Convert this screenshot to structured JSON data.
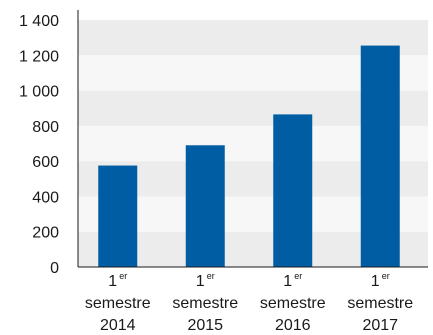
{
  "colors": {
    "bar": "#005da4",
    "band_dark": "#ececec",
    "band_light": "#f7f7f7",
    "axis": "#1a1a1a"
  },
  "chart_data": {
    "type": "bar",
    "title": "",
    "xlabel": "",
    "ylabel": "",
    "categories": [
      {
        "ordinal": "1",
        "ordinal_suffix": "er",
        "word": "semestre",
        "year": "2014"
      },
      {
        "ordinal": "1",
        "ordinal_suffix": "er",
        "word": "semestre",
        "year": "2015"
      },
      {
        "ordinal": "1",
        "ordinal_suffix": "er",
        "word": "semestre",
        "year": "2016"
      },
      {
        "ordinal": "1",
        "ordinal_suffix": "er",
        "word": "semestre",
        "year": "2017"
      }
    ],
    "values": [
      575,
      690,
      865,
      1255
    ],
    "ylim": [
      0,
      1400
    ],
    "yticks": [
      0,
      200,
      400,
      600,
      800,
      1000,
      1200,
      1400
    ],
    "ytick_labels": [
      "0",
      "200",
      "400",
      "600",
      "800",
      "1 000",
      "1 200",
      "1 400"
    ],
    "grid": "alternating-bands",
    "legend": "none"
  }
}
